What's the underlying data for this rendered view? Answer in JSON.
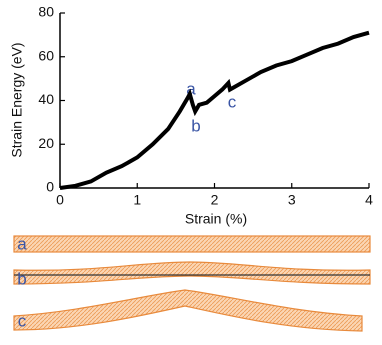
{
  "chart_data": {
    "type": "line",
    "x_label": "Strain (%)",
    "y_label": "Strain Energy (eV)",
    "x": [
      0,
      0.2,
      0.4,
      0.6,
      0.8,
      1.0,
      1.2,
      1.4,
      1.55,
      1.65,
      1.68,
      1.72,
      1.75,
      1.8,
      1.9,
      2.0,
      2.1,
      2.18,
      2.2,
      2.25,
      2.4,
      2.6,
      2.8,
      3.0,
      3.2,
      3.4,
      3.6,
      3.8,
      4.0
    ],
    "values": [
      0,
      1,
      3,
      7,
      10,
      14,
      20,
      27,
      35,
      41,
      43,
      38,
      35,
      38,
      39,
      42,
      45,
      48,
      45,
      46,
      49,
      53,
      56,
      58,
      61,
      64,
      66,
      69,
      71
    ],
    "color": "#000000",
    "xlim": [
      0,
      4
    ],
    "xticks": [
      0,
      1,
      2,
      3,
      4
    ],
    "ylim": [
      0,
      80
    ],
    "yticks": [
      0,
      20,
      40,
      60,
      80
    ],
    "annotations": [
      "a",
      "b",
      "c"
    ]
  },
  "illustrations": {
    "labels": [
      "a",
      "b",
      "c"
    ]
  }
}
